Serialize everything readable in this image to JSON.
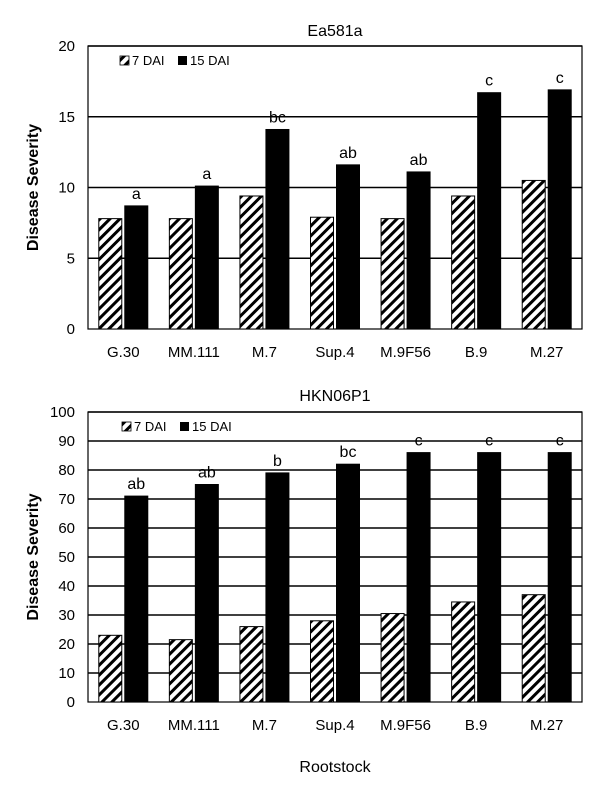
{
  "chart_data": [
    {
      "type": "bar",
      "title": "Ea581a",
      "ylabel": "Disease Severity",
      "xlabel": "",
      "ylim": [
        0,
        20
      ],
      "yticks": [
        0,
        5,
        10,
        15,
        20
      ],
      "grid": true,
      "legend_position": "top-left",
      "categories": [
        "G.30",
        "MM.111",
        "M.7",
        "Sup.4",
        "M.9F56",
        "B.9",
        "M.27"
      ],
      "series": [
        {
          "name": "7 DAI",
          "values": [
            7.8,
            7.8,
            9.4,
            7.9,
            7.8,
            9.4,
            10.5
          ],
          "pattern": "hatched"
        },
        {
          "name": "15 DAI",
          "values": [
            8.7,
            10.1,
            14.1,
            11.6,
            11.1,
            16.7,
            16.9
          ],
          "color": "#000000"
        }
      ],
      "annotations": [
        "a",
        "a",
        "bc",
        "ab",
        "ab",
        "c",
        "c"
      ]
    },
    {
      "type": "bar",
      "title": "HKN06P1",
      "ylabel": "Disease Severity",
      "xlabel": "Rootstock",
      "ylim": [
        0,
        100
      ],
      "yticks": [
        0,
        10,
        20,
        30,
        40,
        50,
        60,
        70,
        80,
        90,
        100
      ],
      "grid": true,
      "legend_position": "top-left",
      "categories": [
        "G.30",
        "MM.111",
        "M.7",
        "Sup.4",
        "M.9F56",
        "B.9",
        "M.27"
      ],
      "series": [
        {
          "name": "7 DAI",
          "values": [
            23,
            21.5,
            26,
            28,
            30.5,
            34.5,
            37
          ],
          "pattern": "hatched"
        },
        {
          "name": "15 DAI",
          "values": [
            71,
            75,
            79,
            82,
            86,
            86,
            86
          ],
          "color": "#000000"
        }
      ],
      "annotations": [
        "ab",
        "ab",
        "b",
        "bc",
        "c",
        "c",
        "c"
      ]
    }
  ]
}
